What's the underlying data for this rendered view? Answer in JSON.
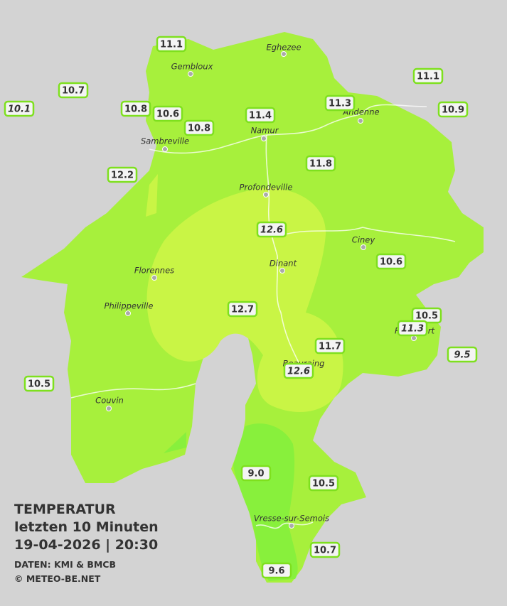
{
  "title": {
    "line1": "TEMPERATUR",
    "line2": "letzten 10 Minuten",
    "line3": "19-04-2026  |  20:30"
  },
  "credits": [
    "DATEN: KMI & BMCB",
    "© METEO-BE.NET"
  ],
  "cities": [
    "Eghezee",
    "Gembloux",
    "Andenne",
    "Namur",
    "Sambreville",
    "Profondeville",
    "Ciney",
    "Florennes",
    "Dinant",
    "Philippeville",
    "Rochefort",
    "Beauraing",
    "Couvin",
    "Vresse-sur-Semois"
  ],
  "stations": [
    "11.1",
    "10.7",
    "10.1",
    "10.8",
    "10.6",
    "10.8",
    "11.4",
    "11.3",
    "11.1",
    "10.9",
    "12.2",
    "11.8",
    "12.6",
    "10.6",
    "12.7",
    "10.5",
    "11.3",
    "11.7",
    "9.5",
    "12.6",
    "10.5",
    "9.0",
    "10.5",
    "10.7",
    "9.6"
  ]
}
